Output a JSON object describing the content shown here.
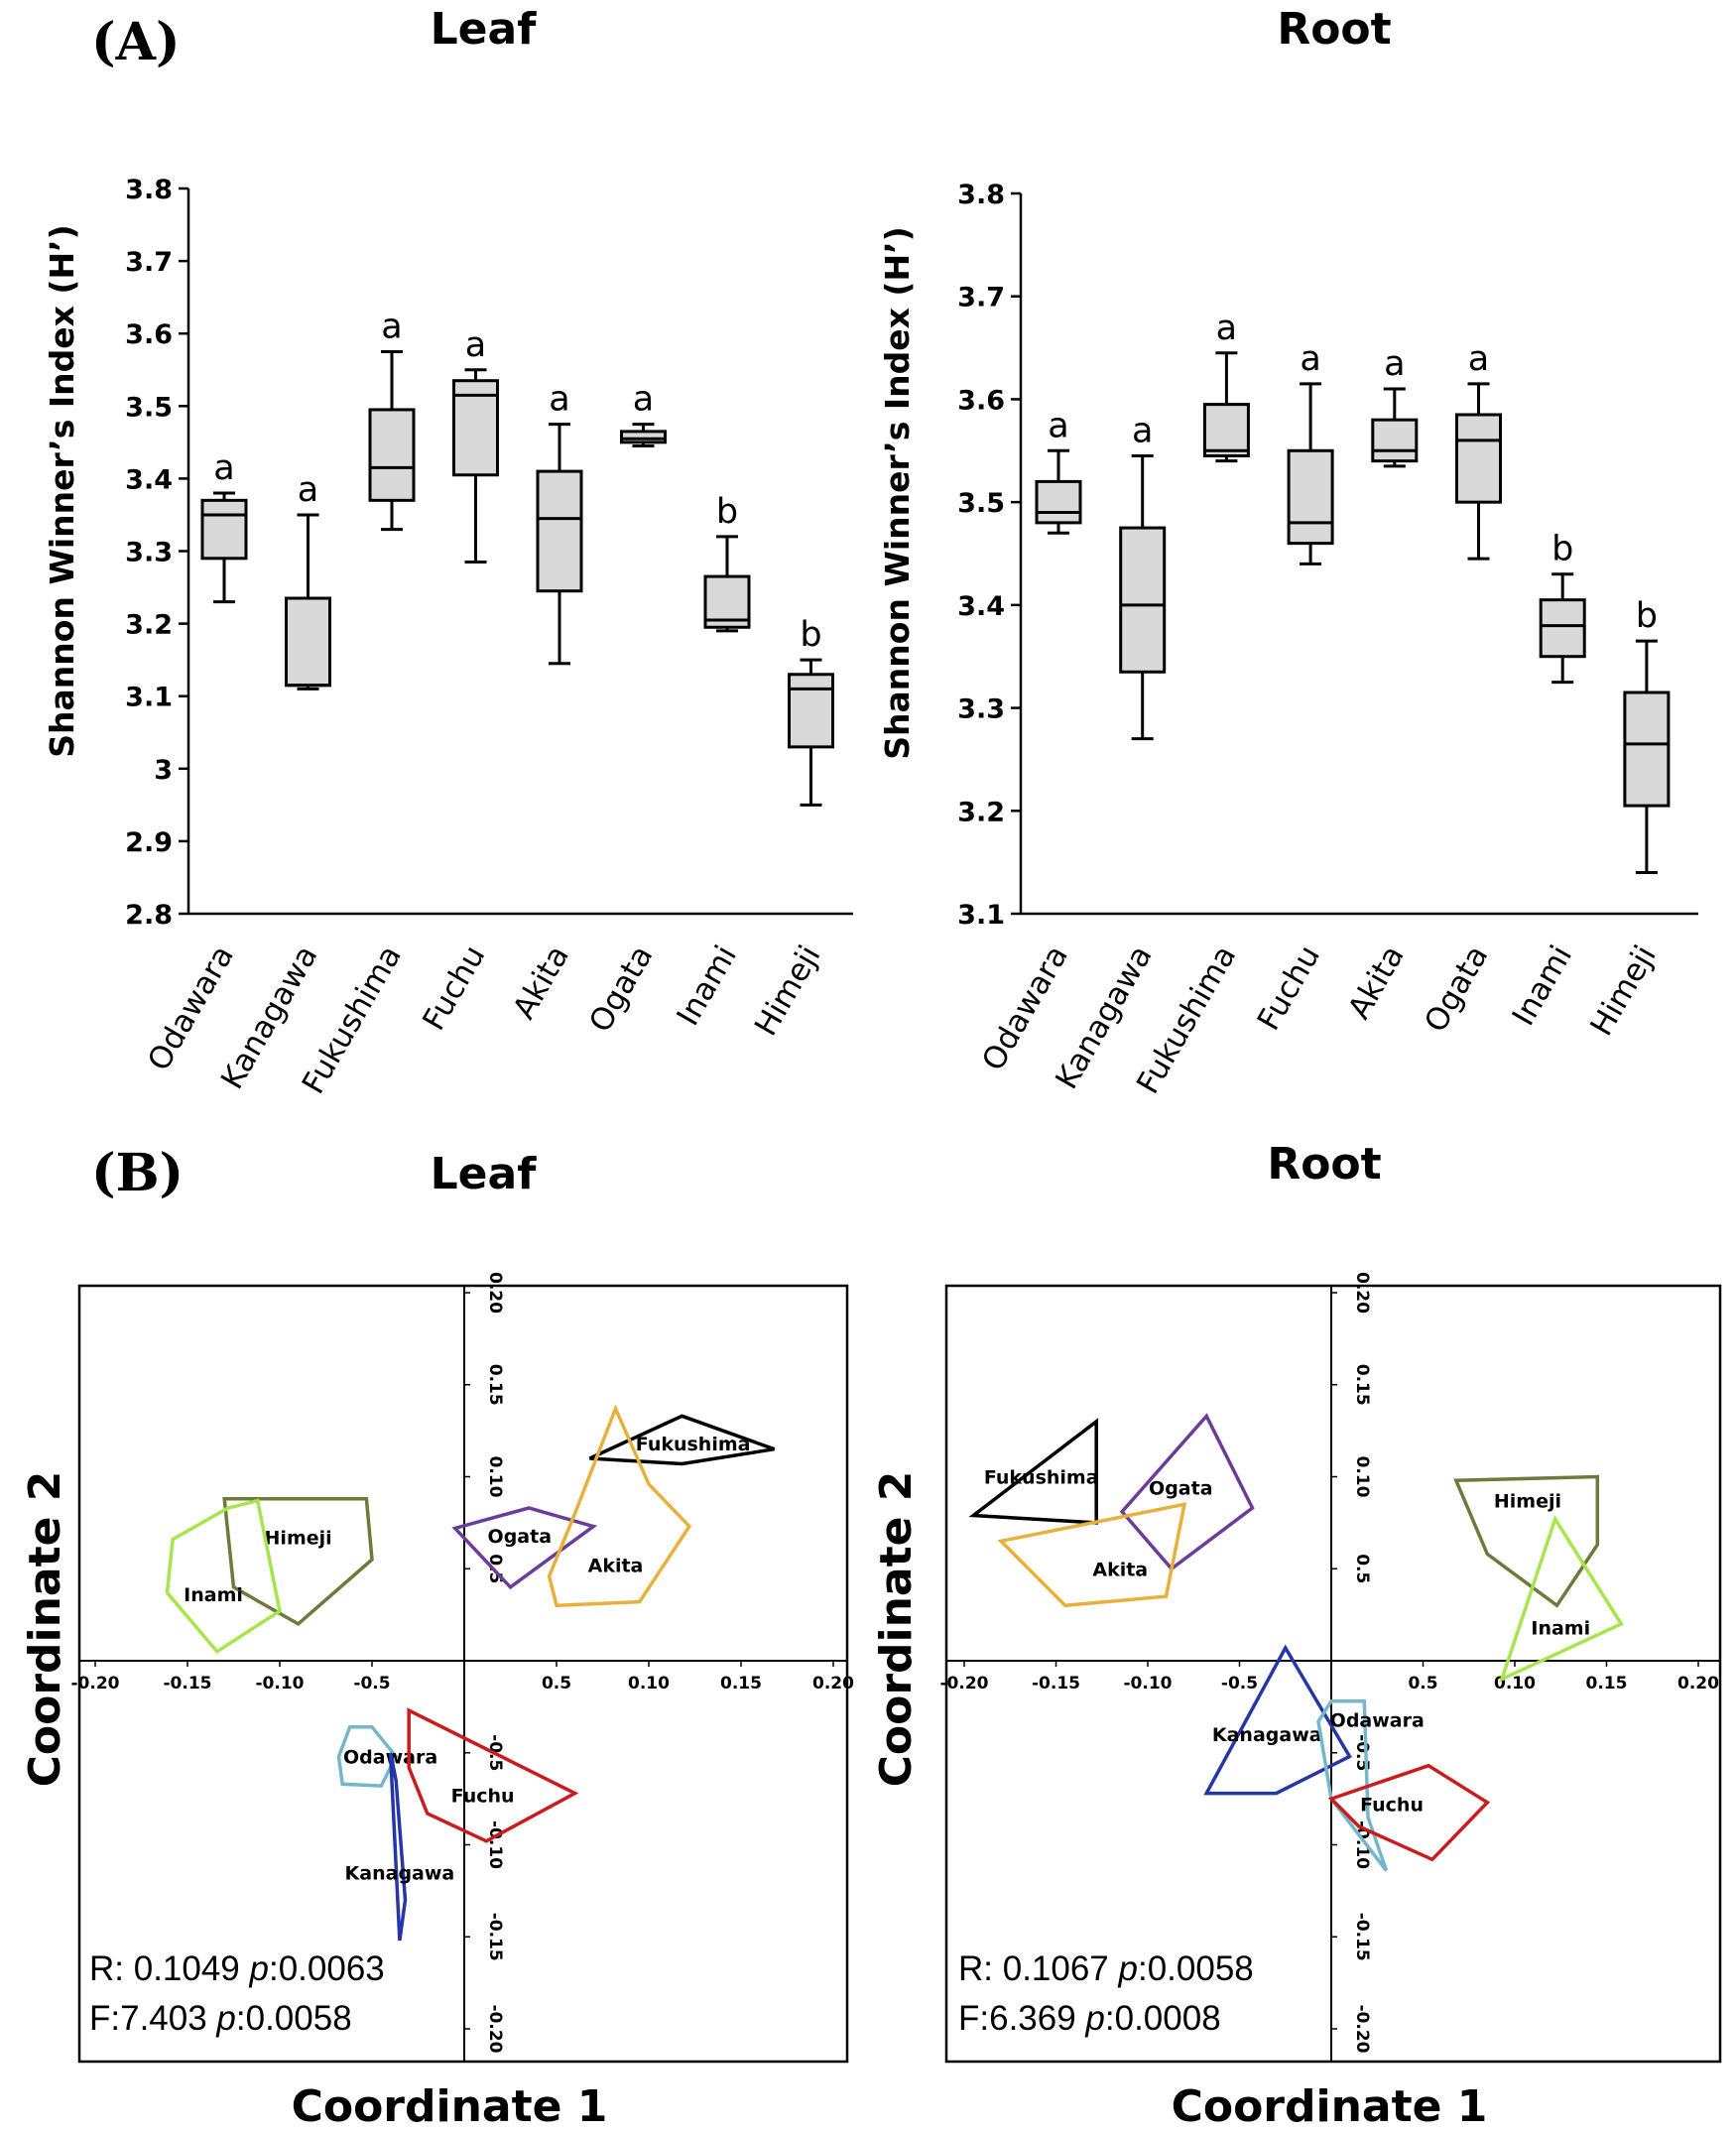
{
  "figure": {
    "panel_a_label": "(A)",
    "panel_b_label": "(B)"
  },
  "chart_data": [
    {
      "type": "box",
      "title": "Leaf",
      "ylabel": "Shannon Winner’s Index (H’)",
      "ylim": [
        2.8,
        3.8
      ],
      "yticks": [
        "2.8",
        "2.9",
        "3",
        "3.1",
        "3.2",
        "3.3",
        "3.4",
        "3.5",
        "3.6",
        "3.7",
        "3.8"
      ],
      "categories": [
        "Odawara",
        "Kanagawa",
        "Fukushima",
        "Fuchu",
        "Akita",
        "Ogata",
        "Inami",
        "Himeji"
      ],
      "boxes": [
        {
          "min": 3.23,
          "q1": 3.29,
          "median": 3.35,
          "q3": 3.37,
          "max": 3.38,
          "label": "a"
        },
        {
          "min": 3.11,
          "q1": 3.115,
          "median": 3.115,
          "q3": 3.235,
          "max": 3.35,
          "label": "a"
        },
        {
          "min": 3.33,
          "q1": 3.37,
          "median": 3.415,
          "q3": 3.495,
          "max": 3.575,
          "label": "a"
        },
        {
          "min": 3.285,
          "q1": 3.405,
          "median": 3.515,
          "q3": 3.535,
          "max": 3.55,
          "label": "a"
        },
        {
          "min": 3.145,
          "q1": 3.245,
          "median": 3.345,
          "q3": 3.41,
          "max": 3.475,
          "label": "a"
        },
        {
          "min": 3.445,
          "q1": 3.45,
          "median": 3.455,
          "q3": 3.465,
          "max": 3.475,
          "label": "a"
        },
        {
          "min": 3.19,
          "q1": 3.195,
          "median": 3.205,
          "q3": 3.265,
          "max": 3.32,
          "label": "b"
        },
        {
          "min": 2.95,
          "q1": 3.03,
          "median": 3.11,
          "q3": 3.13,
          "max": 3.15,
          "label": "b"
        }
      ]
    },
    {
      "type": "box",
      "title": "Root",
      "ylabel": "Shannon Winner’s Index (H’)",
      "ylim": [
        3.1,
        3.8
      ],
      "yticks": [
        "3.1",
        "3.2",
        "3.3",
        "3.4",
        "3.5",
        "3.6",
        "3.7",
        "3.8"
      ],
      "categories": [
        "Odawara",
        "Kanagawa",
        "Fukushima",
        "Fuchu",
        "Akita",
        "Ogata",
        "Inami",
        "Himeji"
      ],
      "boxes": [
        {
          "min": 3.47,
          "q1": 3.48,
          "median": 3.49,
          "q3": 3.52,
          "max": 3.55,
          "label": "a"
        },
        {
          "min": 3.27,
          "q1": 3.335,
          "median": 3.4,
          "q3": 3.475,
          "max": 3.545,
          "label": "a"
        },
        {
          "min": 3.54,
          "q1": 3.545,
          "median": 3.55,
          "q3": 3.595,
          "max": 3.645,
          "label": "a"
        },
        {
          "min": 3.44,
          "q1": 3.46,
          "median": 3.48,
          "q3": 3.55,
          "max": 3.615,
          "label": "a"
        },
        {
          "min": 3.535,
          "q1": 3.54,
          "median": 3.55,
          "q3": 3.58,
          "max": 3.61,
          "label": "a"
        },
        {
          "min": 3.445,
          "q1": 3.5,
          "median": 3.56,
          "q3": 3.585,
          "max": 3.615,
          "label": "a"
        },
        {
          "min": 3.325,
          "q1": 3.35,
          "median": 3.38,
          "q3": 3.405,
          "max": 3.43,
          "label": "b"
        },
        {
          "min": 3.14,
          "q1": 3.205,
          "median": 3.265,
          "q3": 3.315,
          "max": 3.365,
          "label": "b"
        }
      ]
    },
    {
      "type": "scatter",
      "title": "Leaf",
      "xlabel": "Coordinate 1",
      "ylabel": "Coordinate 2",
      "xlim": [
        -0.2,
        0.2
      ],
      "ylim": [
        -0.2,
        0.2
      ],
      "xticks_neg": [
        "-0.20",
        "-0.15",
        "-0.10",
        "-0.5"
      ],
      "xticks_pos": [
        "0.5",
        "0.10",
        "0.15",
        "0.20"
      ],
      "yticks_pos": [
        "0.5",
        "0.10",
        "0.15",
        "0.20"
      ],
      "yticks_neg": [
        "-0.5",
        "-0.10",
        "-0.15",
        "-0.20"
      ],
      "groups": [
        {
          "name": "Himeji",
          "color": "#6b7b3a",
          "hull": [
            [
              -0.13,
              0.088
            ],
            [
              -0.053,
              0.088
            ],
            [
              -0.05,
              0.055
            ],
            [
              -0.09,
              0.02
            ],
            [
              -0.125,
              0.04
            ]
          ],
          "label_at": [
            -0.09,
            0.067
          ]
        },
        {
          "name": "Inami",
          "color": "#a6e64c",
          "hull": [
            [
              -0.158,
              0.066
            ],
            [
              -0.128,
              0.083
            ],
            [
              -0.112,
              0.087
            ],
            [
              -0.1,
              0.027
            ],
            [
              -0.134,
              0.005
            ],
            [
              -0.161,
              0.037
            ]
          ],
          "label_at": [
            -0.136,
            0.036
          ]
        },
        {
          "name": "Fukushima",
          "color": "#000000",
          "hull": [
            [
              0.068,
              0.11
            ],
            [
              0.118,
              0.133
            ],
            [
              0.168,
              0.115
            ],
            [
              0.118,
              0.107
            ]
          ],
          "label_at": [
            0.124,
            0.118
          ]
        },
        {
          "name": "Ogata",
          "color": "#6a3d9a",
          "hull": [
            [
              -0.005,
              0.072
            ],
            [
              0.035,
              0.083
            ],
            [
              0.07,
              0.073
            ],
            [
              0.025,
              0.04
            ]
          ],
          "label_at": [
            0.03,
            0.068
          ]
        },
        {
          "name": "Akita",
          "color": "#e8b03b",
          "hull": [
            [
              0.082,
              0.137
            ],
            [
              0.1,
              0.096
            ],
            [
              0.122,
              0.073
            ],
            [
              0.095,
              0.032
            ],
            [
              0.05,
              0.03
            ],
            [
              0.046,
              0.046
            ],
            [
              0.06,
              0.08
            ]
          ],
          "label_at": [
            0.082,
            0.052
          ]
        },
        {
          "name": "Odawara",
          "color": "#74b7cc",
          "hull": [
            [
              -0.068,
              -0.052
            ],
            [
              -0.062,
              -0.036
            ],
            [
              -0.05,
              -0.036
            ],
            [
              -0.037,
              -0.052
            ],
            [
              -0.045,
              -0.068
            ],
            [
              -0.066,
              -0.067
            ]
          ],
          "label_at": [
            -0.04,
            -0.052
          ]
        },
        {
          "name": "Fuchu",
          "color": "#cc1b1b",
          "hull": [
            [
              -0.03,
              -0.027
            ],
            [
              0.06,
              -0.072
            ],
            [
              0.012,
              -0.098
            ],
            [
              -0.02,
              -0.083
            ],
            [
              -0.03,
              -0.058
            ]
          ],
          "label_at": [
            0.01,
            -0.073
          ]
        },
        {
          "name": "Kanagawa",
          "color": "#2536a8",
          "hull": [
            [
              -0.04,
              -0.05
            ],
            [
              -0.035,
              -0.152
            ],
            [
              -0.032,
              -0.13
            ],
            [
              -0.037,
              -0.065
            ]
          ],
          "label_at": [
            -0.035,
            -0.115
          ]
        }
      ],
      "stats": {
        "r_text": "R: 0.1049  ",
        "p_prefix": "p",
        "r_p": ":0.0063",
        "f_text": "F:7.403   ",
        "f_p": ":0.0058"
      }
    },
    {
      "type": "scatter",
      "title": "Root",
      "xlabel": "Coordinate 1",
      "ylabel": "Coordinate 2",
      "xlim": [
        -0.2,
        0.2
      ],
      "ylim": [
        -0.2,
        0.2
      ],
      "xticks_neg": [
        "-0.20",
        "-0.15",
        "-0.10",
        "-0.5"
      ],
      "xticks_pos": [
        "0.5",
        "0.10",
        "0.15",
        "0.20"
      ],
      "yticks_pos": [
        "0.5",
        "0.10",
        "0.15",
        "0.20"
      ],
      "yticks_neg": [
        "-0.5",
        "-0.10",
        "-0.15",
        "-0.20"
      ],
      "groups": [
        {
          "name": "Fukushima",
          "color": "#000000",
          "hull": [
            [
              -0.195,
              0.079
            ],
            [
              -0.128,
              0.13
            ],
            [
              -0.128,
              0.075
            ]
          ],
          "label_at": [
            -0.158,
            0.1
          ]
        },
        {
          "name": "Ogata",
          "color": "#6a3d9a",
          "hull": [
            [
              -0.114,
              0.081
            ],
            [
              -0.068,
              0.133
            ],
            [
              -0.043,
              0.083
            ],
            [
              -0.087,
              0.05
            ]
          ],
          "label_at": [
            -0.082,
            0.094
          ]
        },
        {
          "name": "Akita",
          "color": "#e8b03b",
          "hull": [
            [
              -0.18,
              0.065
            ],
            [
              -0.08,
              0.085
            ],
            [
              -0.09,
              0.035
            ],
            [
              -0.145,
              0.03
            ]
          ],
          "label_at": [
            -0.115,
            0.05
          ]
        },
        {
          "name": "Himeji",
          "color": "#6b7b3a",
          "hull": [
            [
              0.068,
              0.098
            ],
            [
              0.145,
              0.1
            ],
            [
              0.145,
              0.063
            ],
            [
              0.123,
              0.03
            ],
            [
              0.085,
              0.058
            ]
          ],
          "label_at": [
            0.107,
            0.087
          ]
        },
        {
          "name": "Inami",
          "color": "#a6e64c",
          "hull": [
            [
              0.122,
              0.077
            ],
            [
              0.158,
              0.02
            ],
            [
              0.093,
              -0.01
            ]
          ],
          "label_at": [
            0.125,
            0.018
          ]
        },
        {
          "name": "Kanagawa",
          "color": "#2536a8",
          "hull": [
            [
              -0.025,
              0.007
            ],
            [
              -0.068,
              -0.072
            ],
            [
              -0.03,
              -0.072
            ],
            [
              0.01,
              -0.052
            ]
          ],
          "label_at": [
            -0.035,
            -0.04
          ]
        },
        {
          "name": "Odawara",
          "color": "#74b7cc",
          "hull": [
            [
              0.0,
              -0.022
            ],
            [
              0.018,
              -0.022
            ],
            [
              0.02,
              -0.085
            ],
            [
              0.03,
              -0.114
            ],
            [
              0.0,
              -0.075
            ],
            [
              -0.007,
              -0.033
            ]
          ],
          "label_at": [
            0.025,
            -0.032
          ]
        },
        {
          "name": "Fuchu",
          "color": "#cc1b1b",
          "hull": [
            [
              0.0,
              -0.075
            ],
            [
              0.053,
              -0.057
            ],
            [
              0.085,
              -0.077
            ],
            [
              0.055,
              -0.108
            ],
            [
              0.015,
              -0.09
            ]
          ],
          "label_at": [
            0.033,
            -0.078
          ]
        }
      ],
      "stats": {
        "r_text": "R: 0.1067  ",
        "p_prefix": "p",
        "r_p": ":0.0058",
        "f_text": "F:6.369   ",
        "f_p": ":0.0008"
      }
    }
  ]
}
